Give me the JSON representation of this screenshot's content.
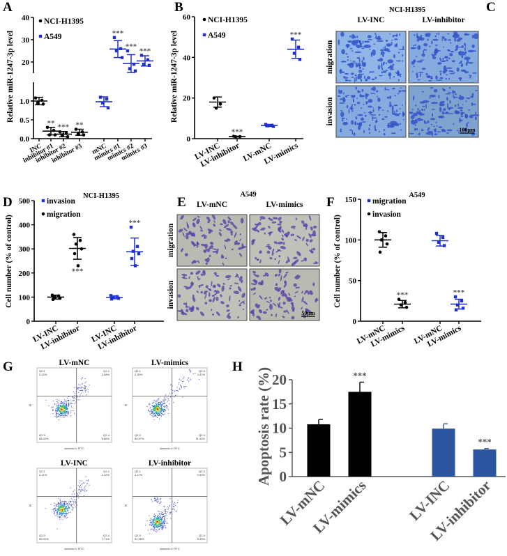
{
  "panel_letters": {
    "A": "A",
    "B": "B",
    "C": "C",
    "D": "D",
    "E": "E",
    "F": "F",
    "G": "G",
    "H": "H"
  },
  "colors": {
    "black_series": "#000000",
    "blue_series": "#1f2fd0",
    "bar_blue": "#2d56a0",
    "sig_grey": "#555555"
  },
  "chart_data": [
    {
      "id": "A",
      "type": "scatter",
      "ylabel": "Relative miR-1247-3p level",
      "yaxis_break": true,
      "ylim_lower": [
        0,
        1.5
      ],
      "ylim_upper": [
        15,
        40
      ],
      "yticks": [
        {
          "v": 0,
          "label": "0.0"
        },
        {
          "v": 0.5,
          "label": "0.5"
        },
        {
          "v": 1.0,
          "label": "1.0"
        },
        {
          "v": 20,
          "label": "20"
        },
        {
          "v": 30,
          "label": "30"
        },
        {
          "v": 40,
          "label": "40"
        }
      ],
      "categories": [
        "INC",
        "inhibitor #1",
        "inhibitor #2",
        "inhibitor #3",
        "mNC",
        "mimics #1",
        "mimics #2",
        "mimics #3"
      ],
      "legend": [
        {
          "name": "NCI-H1395",
          "color": "#000000",
          "marker": "circle"
        },
        {
          "name": "A549",
          "color": "#1f2fd0",
          "marker": "square"
        }
      ],
      "groups": [
        {
          "cat": 0,
          "series": 0,
          "mean": 1.0,
          "sd": 0.1,
          "points": [
            1.08,
            1.02,
            0.95,
            0.92
          ],
          "sig": ""
        },
        {
          "cat": 1,
          "series": 0,
          "mean": 0.2,
          "sd": 0.1,
          "points": [
            0.3,
            0.22,
            0.1,
            0.1
          ],
          "sig": "**"
        },
        {
          "cat": 2,
          "series": 0,
          "mean": 0.12,
          "sd": 0.07,
          "points": [
            0.18,
            0.14,
            0.1,
            0.05
          ],
          "sig": "***"
        },
        {
          "cat": 3,
          "series": 0,
          "mean": 0.17,
          "sd": 0.08,
          "points": [
            0.25,
            0.18,
            0.12,
            0.1
          ],
          "sig": "**"
        },
        {
          "cat": 4,
          "series": 1,
          "mean": 0.98,
          "sd": 0.13,
          "points": [
            1.1,
            1.05,
            0.95,
            0.82
          ],
          "sig": ""
        },
        {
          "cat": 5,
          "series": 1,
          "mean": 25.8,
          "sd": 3.8,
          "points": [
            31,
            26,
            25,
            22
          ],
          "sig": "***"
        },
        {
          "cat": 6,
          "series": 1,
          "mean": 19.3,
          "sd": 4.0,
          "points": [
            25,
            19,
            17,
            16
          ],
          "sig": "***"
        },
        {
          "cat": 7,
          "series": 1,
          "mean": 20.5,
          "sd": 2.3,
          "points": [
            23,
            21,
            19,
            18.5
          ],
          "sig": "***"
        }
      ]
    },
    {
      "id": "B",
      "type": "scatter",
      "ylabel": "Relative miR-1247-3p level",
      "ylim": [
        0,
        60
      ],
      "yticks": [
        {
          "v": 0,
          "label": "0"
        },
        {
          "v": 20,
          "label": "20"
        },
        {
          "v": 40,
          "label": "40"
        },
        {
          "v": 60,
          "label": "60"
        }
      ],
      "categories": [
        "LV-INC",
        "LV-inhibitor",
        "LV-mNC",
        "LV-mimics"
      ],
      "legend": [
        {
          "name": "NCI-H1395",
          "color": "#000000",
          "marker": "circle"
        },
        {
          "name": "A549",
          "color": "#1f2fd0",
          "marker": "square"
        }
      ],
      "groups": [
        {
          "cat": 0,
          "series": 0,
          "mean": 18,
          "sd": 2.5,
          "points": [
            20,
            17,
            15
          ],
          "sig": ""
        },
        {
          "cat": 1,
          "series": 0,
          "mean": 1.0,
          "sd": 0.2,
          "points": [
            1.2,
            1.0,
            0.9
          ],
          "sig": "***"
        },
        {
          "cat": 2,
          "series": 1,
          "mean": 6.5,
          "sd": 0.5,
          "points": [
            7,
            6.6,
            6.3,
            6
          ],
          " sig": ""
        },
        {
          "cat": 3,
          "series": 1,
          "mean": 44,
          "sd": 4.5,
          "points": [
            49,
            45,
            42,
            39
          ],
          "sig": "***"
        }
      ]
    },
    {
      "id": "D",
      "type": "scatter",
      "title": "NCI-H1395",
      "ylabel": "Cell number (% of control)",
      "ylim": [
        0,
        500
      ],
      "yticks": [
        {
          "v": 0,
          "label": "0"
        },
        {
          "v": 100,
          "label": "100"
        },
        {
          "v": 200,
          "label": "200"
        },
        {
          "v": 300,
          "label": "300"
        },
        {
          "v": 400,
          "label": "400"
        },
        {
          "v": 500,
          "label": "500"
        }
      ],
      "categories": [
        "LV-INC",
        "LV-inhibitor",
        "LV-INC",
        "LV-inhibitor"
      ],
      "legend": [
        {
          "name": "invasion",
          "color": "#1f2fd0",
          "marker": "square"
        },
        {
          "name": "migration",
          "color": "#000000",
          "marker": "circle"
        }
      ],
      "groups": [
        {
          "cat": 0,
          "series": 1,
          "mean": 100,
          "sd": 8,
          "points": [
            108,
            105,
            100,
            95,
            90
          ],
          "sig": ""
        },
        {
          "cat": 1,
          "series": 1,
          "mean": 302,
          "sd": 45,
          "points": [
            360,
            335,
            320,
            300,
            280,
            230
          ],
          "sig": "***",
          "sig_below": true
        },
        {
          "cat": 2,
          "series": 0,
          "mean": 99,
          "sd": 6,
          "points": [
            106,
            102,
            98,
            95,
            92
          ],
          "sig": ""
        },
        {
          "cat": 3,
          "series": 0,
          "mean": 288,
          "sd": 57,
          "points": [
            390,
            310,
            290,
            280,
            260,
            230
          ],
          "sig": "***"
        }
      ]
    },
    {
      "id": "F",
      "type": "scatter",
      "title": "A549",
      "ylabel": "Cell number (% of control)",
      "ylim": [
        0,
        150
      ],
      "yticks": [
        {
          "v": 0,
          "label": "0"
        },
        {
          "v": 50,
          "label": "50"
        },
        {
          "v": 100,
          "label": "100"
        },
        {
          "v": 150,
          "label": "150"
        }
      ],
      "categories": [
        "LV-mNC",
        "LV-mimics",
        "LV-mNC",
        "LV-mimics"
      ],
      "legend": [
        {
          "name": "migration",
          "color": "#1f2fd0",
          "marker": "square"
        },
        {
          "name": "invasion",
          "color": "#000000",
          "marker": "circle"
        }
      ],
      "groups": [
        {
          "cat": 0,
          "series": 1,
          "mean": 100,
          "sd": 9,
          "points": [
            110,
            105,
            100,
            95,
            85
          ],
          "sig": ""
        },
        {
          "cat": 1,
          "series": 1,
          "mean": 21,
          "sd": 4.5,
          "points": [
            27,
            23,
            20,
            17
          ],
          "sig": "***"
        },
        {
          "cat": 2,
          "series": 0,
          "mean": 99,
          "sd": 6.5,
          "points": [
            108,
            103,
            97,
            93
          ],
          "sig": ""
        },
        {
          "cat": 3,
          "series": 0,
          "mean": 21,
          "sd": 6,
          "points": [
            30,
            25,
            20,
            16,
            14
          ],
          "sig": "***"
        }
      ]
    },
    {
      "id": "H",
      "type": "bar",
      "ylabel": "Apoptosis rate (%)",
      "ylim": [
        0,
        20
      ],
      "yticks": [
        {
          "v": 0,
          "label": "0"
        },
        {
          "v": 5,
          "label": "5"
        },
        {
          "v": 10,
          "label": "10"
        },
        {
          "v": 15,
          "label": "15"
        },
        {
          "v": 20,
          "label": "20"
        }
      ],
      "categories": [
        "LV-mNC",
        "LV-mimics",
        "LV-INC",
        "LV-inhibitor"
      ],
      "values": [
        10.8,
        17.5,
        9.9,
        5.6
      ],
      "errors": [
        1.0,
        2.0,
        1.0,
        0.2
      ],
      "bar_colors": [
        "#000000",
        "#000000",
        "#2d56a0",
        "#2d56a0"
      ],
      "sig": [
        "",
        "***",
        "",
        "***"
      ]
    },
    {
      "id": "G",
      "type": "flow-cytometry",
      "xlabel": "Annexin-V FITC",
      "ylabel": "PI",
      "plots": [
        {
          "title": "LV-mNC",
          "quadrants": [
            {
              "name": "Q2-1",
              "value": "0.14%"
            },
            {
              "name": "Q2-2",
              "value": "2.58%"
            },
            {
              "name": "Q2-3",
              "value": "88.42%"
            },
            {
              "name": "Q2-4",
              "value": "8.86%"
            }
          ]
        },
        {
          "title": "LV-mimics",
          "quadrants": [
            {
              "name": "Q2-1",
              "value": "0.30%"
            },
            {
              "name": "Q2-2",
              "value": "4.31%"
            },
            {
              "name": "Q2-3",
              "value": "83.97%"
            },
            {
              "name": "Q2-4",
              "value": "11.42%"
            }
          ]
        },
        {
          "title": "LV-INC",
          "quadrants": [
            {
              "name": "Q2-1",
              "value": "0.17%"
            },
            {
              "name": "Q2-2",
              "value": "2.12%"
            },
            {
              "name": "Q2-3",
              "value": "90.00%"
            },
            {
              "name": "Q2-4",
              "value": "7.71%"
            }
          ]
        },
        {
          "title": "LV-inhibitor",
          "quadrants": [
            {
              "name": "Q2-1",
              "value": "1.17%"
            },
            {
              "name": "Q2-2",
              "value": "0.50%"
            },
            {
              "name": "Q2-3",
              "value": "92.98%"
            },
            {
              "name": "Q2-4",
              "value": "5.35%"
            }
          ]
        }
      ]
    }
  ],
  "micrographs": {
    "C": {
      "title": "NCI-H1395",
      "columns": [
        "LV-INC",
        "LV-inhibitor"
      ],
      "rows": [
        "migration",
        "invasion"
      ],
      "scale_bar": "100μm"
    },
    "E": {
      "title": "A549",
      "columns": [
        "LV-mNC",
        "LV-mimics"
      ],
      "rows": [
        "migration",
        "invasion"
      ],
      "scale_bar": "50μm"
    }
  }
}
